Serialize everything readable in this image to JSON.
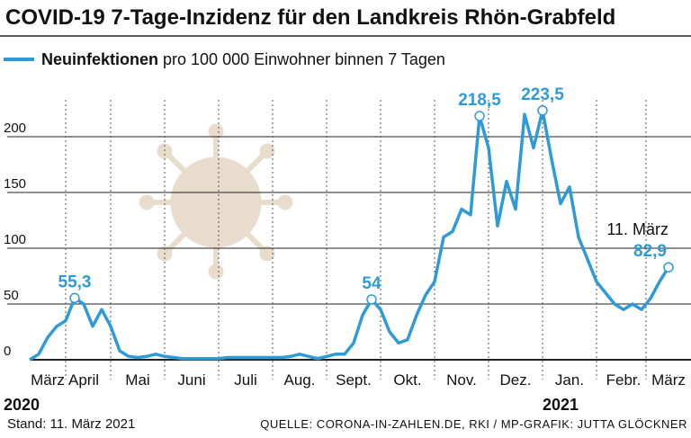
{
  "chart_data": {
    "type": "line",
    "title": "COVID-19 7-Tage-Inzidenz für den Landkreis Rhön-Grabfeld",
    "categories": [
      null,
      null,
      "März",
      null,
      null,
      null,
      "April",
      null,
      null,
      null,
      null,
      null,
      "Mai",
      null,
      null,
      null,
      null,
      null,
      "Juni",
      null,
      null,
      null,
      null,
      null,
      "Juli",
      null,
      null,
      null,
      null,
      null,
      "Aug.",
      null,
      null,
      null,
      null,
      null,
      "Sept.",
      null,
      null,
      null,
      null,
      null,
      "Okt.",
      null,
      null,
      null,
      null,
      null,
      "Nov.",
      null,
      null,
      null,
      null,
      null,
      "Dez.",
      null,
      null,
      null,
      null,
      null,
      "Jan.",
      null,
      null,
      null,
      null,
      null,
      "Febr.",
      null,
      null,
      null,
      null,
      "März"
    ],
    "year_labels": [
      "2020",
      "2021"
    ],
    "series": [
      {
        "name": "Neuinfektionen pro 100 000 Einwohner binnen 7 Tagen",
        "color": "#2f9ad8",
        "values": [
          0,
          5,
          20,
          30,
          35,
          55.3,
          50,
          30,
          45,
          30,
          8,
          3,
          2,
          3,
          5,
          3,
          2,
          1,
          1,
          1,
          1,
          1,
          2,
          2,
          2,
          2,
          2,
          2,
          2,
          3,
          5,
          3,
          1,
          3,
          5,
          5,
          15,
          40,
          54,
          45,
          25,
          15,
          18,
          40,
          58,
          70,
          110,
          115,
          135,
          130,
          218.5,
          190,
          120,
          160,
          135,
          220,
          190,
          223.5,
          180,
          140,
          155,
          110,
          90,
          70,
          60,
          50,
          45,
          50,
          45,
          55,
          70,
          82.9
        ],
        "value_labels": [
          null,
          null,
          null,
          null,
          null,
          "55,3",
          null,
          null,
          null,
          null,
          null,
          null,
          null,
          null,
          null,
          null,
          null,
          null,
          null,
          null,
          null,
          null,
          null,
          null,
          null,
          null,
          null,
          null,
          null,
          null,
          null,
          null,
          null,
          null,
          null,
          null,
          null,
          null,
          "54",
          null,
          null,
          null,
          null,
          null,
          null,
          null,
          null,
          null,
          null,
          null,
          "218,5",
          null,
          null,
          null,
          null,
          null,
          null,
          "223,5",
          null,
          null,
          null,
          null,
          null,
          null,
          null,
          null,
          null,
          null,
          null,
          null,
          null,
          "82,9"
        ]
      }
    ],
    "annotation": "11. März",
    "ylim": [
      0,
      225
    ],
    "yticks": [
      0,
      50,
      100,
      150,
      200
    ],
    "grid": true,
    "footnote": "Stand: 11. März 2021",
    "source": "QUELLE: CORONA-IN-ZAHLEN.DE, RKI / MP-GRAFIK: JUTTA GLÖCKNER"
  }
}
